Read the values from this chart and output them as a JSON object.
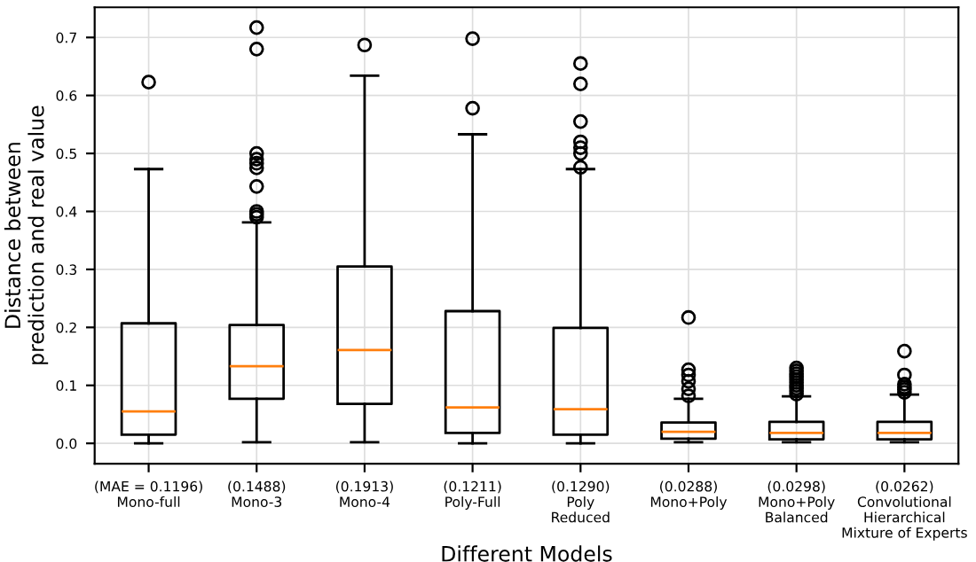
{
  "chart_data": {
    "type": "box",
    "xlabel": "Different Models",
    "ylabel": "Distance between\nprediction and real value",
    "categories": [
      "(MAE = 0.1196)\nMono-full",
      "(0.1488)\nMono-3",
      "(0.1913)\nMono-4",
      "(0.1211)\nPoly-Full",
      "(0.1290)\nPoly\nReduced",
      "(0.0288)\nMono+Poly",
      "(0.0298)\nMono+Poly\nBalanced",
      "(0.0262)\nConvolutional\nHierarchical\nMixture of Experts"
    ],
    "boxes": [
      {
        "low": 0.0,
        "q1": 0.015,
        "median": 0.055,
        "q3": 0.207,
        "high": 0.473,
        "outliers": [
          0.623
        ]
      },
      {
        "low": 0.002,
        "q1": 0.077,
        "median": 0.133,
        "q3": 0.204,
        "high": 0.381,
        "outliers": [
          0.39,
          0.395,
          0.4,
          0.443,
          0.475,
          0.483,
          0.49,
          0.5,
          0.68,
          0.717
        ]
      },
      {
        "low": 0.002,
        "q1": 0.068,
        "median": 0.161,
        "q3": 0.305,
        "high": 0.634,
        "outliers": [
          0.687
        ]
      },
      {
        "low": 0.0,
        "q1": 0.018,
        "median": 0.062,
        "q3": 0.228,
        "high": 0.533,
        "outliers": [
          0.578,
          0.698
        ]
      },
      {
        "low": 0.0,
        "q1": 0.015,
        "median": 0.059,
        "q3": 0.199,
        "high": 0.473,
        "outliers": [
          0.476,
          0.5,
          0.51,
          0.52,
          0.555,
          0.62,
          0.655
        ]
      },
      {
        "low": 0.002,
        "q1": 0.008,
        "median": 0.02,
        "q3": 0.036,
        "high": 0.077,
        "outliers": [
          0.082,
          0.094,
          0.107,
          0.118,
          0.127,
          0.217
        ]
      },
      {
        "low": 0.002,
        "q1": 0.007,
        "median": 0.018,
        "q3": 0.037,
        "high": 0.081,
        "outliers": [
          0.085,
          0.09,
          0.095,
          0.1,
          0.105,
          0.11,
          0.115,
          0.12,
          0.125,
          0.13
        ]
      },
      {
        "low": 0.002,
        "q1": 0.007,
        "median": 0.018,
        "q3": 0.037,
        "high": 0.084,
        "outliers": [
          0.088,
          0.093,
          0.097,
          0.102,
          0.118,
          0.159
        ]
      }
    ],
    "ylim": [
      -0.035,
      0.752
    ],
    "yticks": [
      {
        "value": 0,
        "label": "0.0"
      },
      0.1,
      0.2,
      0.3,
      0.4,
      0.5,
      0.6,
      0.7
    ],
    "grid": true
  }
}
